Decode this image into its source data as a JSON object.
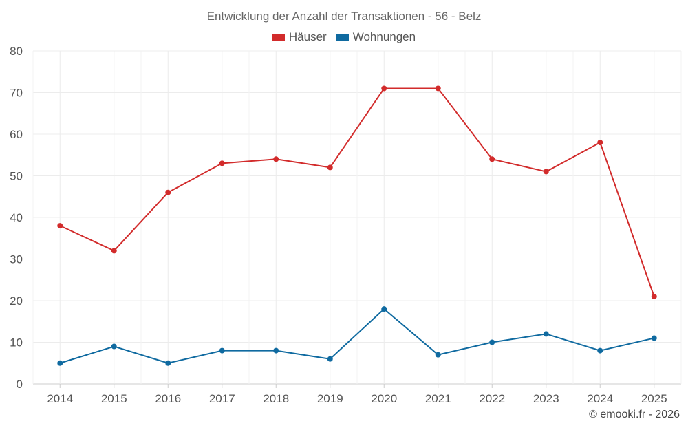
{
  "chart_data": {
    "type": "line",
    "title": "Entwicklung der Anzahl der Transaktionen - 56 - Belz",
    "categories": [
      "2014",
      "2015",
      "2016",
      "2017",
      "2018",
      "2019",
      "2020",
      "2021",
      "2022",
      "2023",
      "2024",
      "2025"
    ],
    "series": [
      {
        "name": "Häuser",
        "color": "#d22b2b",
        "values": [
          38,
          32,
          46,
          53,
          54,
          52,
          71,
          71,
          54,
          51,
          58,
          21
        ]
      },
      {
        "name": "Wohnungen",
        "color": "#0f6aa0",
        "values": [
          5,
          9,
          5,
          8,
          8,
          6,
          18,
          7,
          10,
          12,
          8,
          11
        ]
      }
    ],
    "ylim": [
      0,
      80
    ],
    "yticks": [
      0,
      10,
      20,
      30,
      40,
      50,
      60,
      70,
      80
    ],
    "grid": true,
    "legend": "top-center"
  },
  "credit": "© emooki.fr - 2026"
}
